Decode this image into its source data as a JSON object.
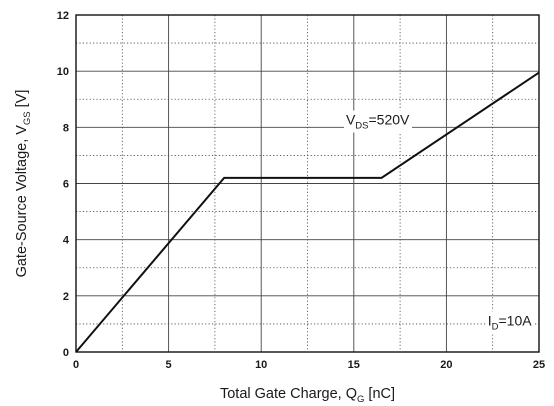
{
  "chart_data": {
    "type": "line",
    "title": "",
    "xlabel": {
      "main": "Total Gate Charge, Q",
      "sub": "G",
      "tail": " [nC]"
    },
    "ylabel": {
      "main": "Gate-Source Voltage, V",
      "sub": "GS",
      "tail": " [V]"
    },
    "xlim": [
      0,
      25
    ],
    "ylim": [
      0,
      12
    ],
    "x_ticks": [
      0,
      5,
      10,
      15,
      20,
      25
    ],
    "y_ticks": [
      0,
      2,
      4,
      6,
      8,
      10,
      12
    ],
    "x_tick_labels": [
      "0",
      "5",
      "10",
      "15",
      "20",
      "25"
    ],
    "y_tick_labels": [
      "0",
      "2",
      "4",
      "6",
      "8",
      "10",
      "12"
    ],
    "grid": {
      "major": "solid",
      "minor": "dotted",
      "x_minor_step": 2.5,
      "y_minor_step": 1
    },
    "series": [
      {
        "x": [
          0,
          8,
          16.5,
          25
        ],
        "y": [
          0,
          6.2,
          6.2,
          9.95
        ]
      }
    ],
    "annotations": [
      {
        "main": "V",
        "sub": "DS",
        "tail": "=520V",
        "anchor_x": 18,
        "anchor_y": 8.1
      },
      {
        "main": "I",
        "sub": "D",
        "tail": "=10A",
        "anchor_x": 24.6,
        "anchor_y": 0.95
      }
    ],
    "colors": {
      "line": "#111111",
      "grid": "#444444",
      "frame": "#111111"
    }
  }
}
